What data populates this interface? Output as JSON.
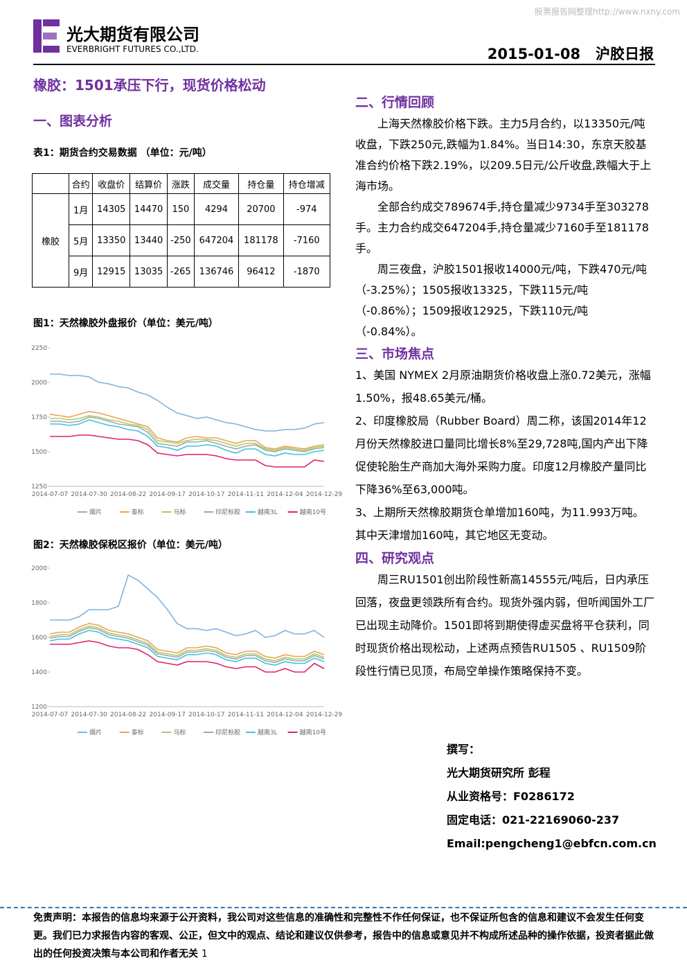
{
  "header": {
    "watermark": "股票报告网整理http://www.nxny.com",
    "logo_cn": "光大期货有限公司",
    "logo_en": "EVERBRIGHT FUTURES CO.,LTD.",
    "date": "2015-01-08",
    "report": "沪胶日报"
  },
  "title": "橡胶：1501承压下行，现货价格松动",
  "left": {
    "heading": "一、图表分析",
    "table_caption": "表1：期货合约交易数据 （单位：元/吨）",
    "table": {
      "columns": [
        "合约",
        "收盘价",
        "结算价",
        "涨跌",
        "成交量",
        "持仓量",
        "持仓增减"
      ],
      "group": "橡胶",
      "rows": [
        [
          "1月",
          "14305",
          "14470",
          "150",
          "4294",
          "20700",
          "-974"
        ],
        [
          "5月",
          "13350",
          "13440",
          "-250",
          "647204",
          "181178",
          "-7160"
        ],
        [
          "9月",
          "12915",
          "13035",
          "-265",
          "136746",
          "96412",
          "-1870"
        ]
      ]
    }
  },
  "chart_data": [
    {
      "type": "line",
      "title": "图1：天然橡胶外盘报价（单位：美元/吨）",
      "categories": [
        "2014-07-07",
        null,
        null,
        null,
        "2014-07-30",
        null,
        null,
        null,
        "2014-08-22",
        null,
        null,
        null,
        "2014-09-17",
        null,
        null,
        null,
        "2014-10-17",
        null,
        null,
        null,
        "2014-11-11",
        null,
        null,
        null,
        "2014-12-04",
        null,
        null,
        null,
        "2014-12-29"
      ],
      "ylim": [
        1250,
        2250
      ],
      "yticks": [
        1250,
        1500,
        1750,
        2000,
        2250
      ],
      "series": [
        {
          "name": "烟片",
          "color": "#7fb2e0",
          "values": [
            2060,
            2060,
            2050,
            2050,
            2040,
            2000,
            1990,
            1970,
            1960,
            1930,
            1910,
            1870,
            1820,
            1780,
            1760,
            1740,
            1750,
            1730,
            1710,
            1700,
            1680,
            1660,
            1650,
            1650,
            1660,
            1660,
            1670,
            1700,
            1710
          ]
        },
        {
          "name": "泰标",
          "color": "#f0a050",
          "values": [
            1770,
            1760,
            1750,
            1770,
            1790,
            1780,
            1760,
            1740,
            1720,
            1700,
            1680,
            1600,
            1580,
            1570,
            1600,
            1610,
            1600,
            1600,
            1580,
            1560,
            1580,
            1580,
            1530,
            1520,
            1540,
            1530,
            1520,
            1540,
            1550
          ]
        },
        {
          "name": "马标",
          "color": "#9fd06a",
          "values": [
            1740,
            1740,
            1730,
            1740,
            1760,
            1750,
            1730,
            1720,
            1700,
            1690,
            1660,
            1580,
            1570,
            1560,
            1580,
            1590,
            1590,
            1580,
            1560,
            1540,
            1560,
            1560,
            1520,
            1510,
            1530,
            1520,
            1510,
            1530,
            1540
          ]
        },
        {
          "name": "印尼标胶",
          "color": "#a6a6a6",
          "values": [
            1720,
            1720,
            1710,
            1720,
            1750,
            1740,
            1720,
            1700,
            1690,
            1680,
            1640,
            1560,
            1550,
            1540,
            1570,
            1570,
            1580,
            1560,
            1540,
            1520,
            1540,
            1550,
            1510,
            1500,
            1520,
            1510,
            1500,
            1520,
            1530
          ]
        },
        {
          "name": "越南3L",
          "color": "#40c0e0",
          "values": [
            1700,
            1700,
            1690,
            1700,
            1730,
            1710,
            1690,
            1680,
            1660,
            1650,
            1610,
            1540,
            1530,
            1510,
            1540,
            1540,
            1550,
            1540,
            1510,
            1490,
            1520,
            1520,
            1480,
            1470,
            1490,
            1480,
            1480,
            1500,
            1510
          ]
        },
        {
          "name": "越南10号",
          "color": "#e0206a",
          "values": [
            1610,
            1610,
            1610,
            1620,
            1620,
            1610,
            1600,
            1590,
            1590,
            1580,
            1550,
            1490,
            1480,
            1470,
            1480,
            1480,
            1480,
            1470,
            1450,
            1440,
            1440,
            1440,
            1400,
            1390,
            1390,
            1390,
            1390,
            1440,
            1430
          ]
        }
      ]
    },
    {
      "type": "line",
      "title": "图2：天然橡胶保税区报价（单位：美元/吨）",
      "categories": [
        "2014-07-07",
        null,
        null,
        null,
        "2014-07-30",
        null,
        null,
        null,
        "2014-08-22",
        null,
        null,
        null,
        "2014-09-17",
        null,
        null,
        null,
        "2014-10-17",
        null,
        null,
        null,
        "2014-11-11",
        null,
        null,
        null,
        "2014-12-04",
        null,
        null,
        null,
        "2014-12-29"
      ],
      "ylim": [
        1200,
        2000
      ],
      "yticks": [
        1200,
        1400,
        1600,
        1800,
        2000
      ],
      "series": [
        {
          "name": "烟片",
          "color": "#7fb2e0",
          "values": [
            1700,
            1700,
            1700,
            1720,
            1760,
            1760,
            1760,
            1780,
            1960,
            1930,
            1880,
            1830,
            1760,
            1680,
            1650,
            1650,
            1640,
            1650,
            1630,
            1610,
            1620,
            1640,
            1600,
            1610,
            1640,
            1620,
            1620,
            1640,
            1600
          ]
        },
        {
          "name": "泰标",
          "color": "#f0a050",
          "values": [
            1620,
            1630,
            1630,
            1660,
            1680,
            1670,
            1640,
            1630,
            1620,
            1600,
            1580,
            1530,
            1520,
            1510,
            1540,
            1540,
            1550,
            1540,
            1510,
            1500,
            1520,
            1520,
            1490,
            1480,
            1500,
            1490,
            1490,
            1520,
            1500
          ]
        },
        {
          "name": "马标",
          "color": "#9fd06a",
          "values": [
            1605,
            1615,
            1615,
            1645,
            1665,
            1655,
            1625,
            1615,
            1605,
            1585,
            1565,
            1515,
            1505,
            1495,
            1525,
            1525,
            1535,
            1525,
            1495,
            1485,
            1505,
            1505,
            1475,
            1465,
            1485,
            1475,
            1475,
            1505,
            1485
          ]
        },
        {
          "name": "印尼标胶",
          "color": "#a6a6a6",
          "values": [
            1595,
            1605,
            1605,
            1635,
            1655,
            1645,
            1615,
            1605,
            1595,
            1575,
            1555,
            1505,
            1495,
            1485,
            1515,
            1515,
            1525,
            1515,
            1485,
            1475,
            1495,
            1495,
            1465,
            1455,
            1475,
            1465,
            1465,
            1495,
            1475
          ]
        },
        {
          "name": "越南3L",
          "color": "#40c0e0",
          "values": [
            1580,
            1590,
            1590,
            1620,
            1640,
            1630,
            1600,
            1590,
            1580,
            1560,
            1540,
            1490,
            1480,
            1470,
            1500,
            1500,
            1510,
            1500,
            1470,
            1460,
            1480,
            1480,
            1450,
            1440,
            1460,
            1450,
            1450,
            1480,
            1460
          ]
        },
        {
          "name": "越南10号",
          "color": "#e0206a",
          "values": [
            1560,
            1560,
            1560,
            1570,
            1580,
            1570,
            1550,
            1540,
            1540,
            1530,
            1500,
            1460,
            1450,
            1440,
            1460,
            1460,
            1460,
            1450,
            1430,
            1420,
            1430,
            1430,
            1400,
            1400,
            1420,
            1400,
            1400,
            1450,
            1420
          ]
        }
      ]
    }
  ],
  "right": {
    "sections": [
      {
        "heading": "二、行情回顾",
        "paragraphs": [
          "上海天然橡胶价格下跌。主力5月合约，以13350元/吨收盘，下跌250元,跌幅为1.84%。当日14:30，东京天胶基准合约价格下跌2.19%，以209.5日元/公斤收盘,跌幅大于上海市场。",
          "全部合约成交789674手,持仓量减少9734手至303278 手。主力合约成交647204手,持仓量减少7160手至181178手。",
          "周三夜盘，沪胶1501报收14000元/吨，下跌470元/吨（-3.25%）；1505报收13325，下跌115元/吨（-0.86%）；1509报收12925，下跌110元/吨（-0.84%）。"
        ]
      },
      {
        "heading": "三、市场焦点",
        "paragraphs": [
          "1、美国 NYMEX 2月原油期货价格收盘上涨0.72美元，涨幅1.50%，报48.65美元/桶。",
          "2、印度橡胶局（Rubber Board）周二称，该国2014年12月份天然橡胶进口量同比增长8%至29,728吨,国内产出下降促使轮胎生产商加大海外采购力度。印度12月橡胶产量同比下降36%至63,000吨。",
          "3、上期所天然橡胶期货仓单增加160吨，为11.993万吨。其中天津增加160吨，其它地区无变动。"
        ]
      },
      {
        "heading": "四、研究观点",
        "paragraphs": [
          "周三RU1501创出阶段性新高14555元/吨后，日内承压回落，夜盘更领跌所有合约。现货外强内弱，但听闻国外工厂已出现主动降价。1501即将到期使得虚买盘将平仓获利，同时现货价格出现松动，上述两点预告RU1505 、RU1509阶段性行情已见顶，布局空单操作策略保持不变。"
        ]
      }
    ]
  },
  "author": [
    "撰写：",
    "光大期货研究所 彭程",
    "从业资格号：F0286172",
    "固定电话：021-22169060-237",
    "Email:pengcheng1@ebfcn.com.cn"
  ],
  "footer": {
    "disclaimer": "免责声明：本报告的信息均来源于公开资料，我公司对这些信息的准确性和完整性不作任何保证，也不保证所包含的信息和建议不会发生任何变更。我们已力求报告内容的客观、公正，但文中的观点、结论和建议仅供参考，报告中的信息或意见并不构成所述品种的操作依据，投资者据此做出的任何投资决策与本公司和作者无关",
    "page": "1"
  }
}
